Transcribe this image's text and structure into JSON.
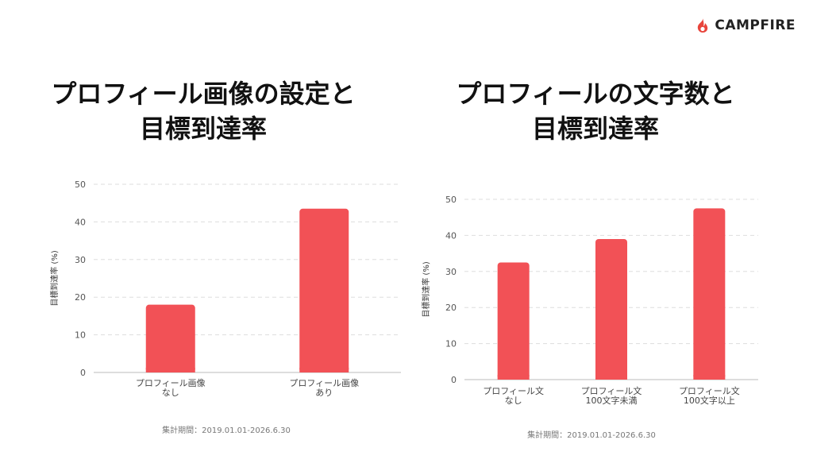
{
  "brand": {
    "name": "CAMPFIRE",
    "color": "#e8453c"
  },
  "colors": {
    "bar": "#f25156",
    "grid": "#dddddd",
    "axis": "#bbbbbb"
  },
  "chart_data": [
    {
      "type": "bar",
      "title": "プロフィール画像の設定と\n目標到達率",
      "ylabel": "目標到達率 (%)",
      "ylim": [
        0,
        50
      ],
      "yticks": [
        0,
        10,
        20,
        30,
        40,
        50
      ],
      "grid": true,
      "categories": [
        "プロフィール画像\nなし",
        "プロフィール画像\nあり"
      ],
      "values": [
        18,
        43.5
      ],
      "period": "集計期間：2019.01.01-2026.6.30"
    },
    {
      "type": "bar",
      "title": "プロフィールの文字数と\n目標到達率",
      "ylabel": "目標到達率 (%)",
      "ylim": [
        0,
        50
      ],
      "yticks": [
        0,
        10,
        20,
        30,
        40,
        50
      ],
      "grid": true,
      "categories": [
        "プロフィール文\nなし",
        "プロフィール文\n100文字未満",
        "プロフィール文\n100文字以上"
      ],
      "values": [
        32.5,
        39,
        47.5
      ],
      "period": "集計期間：2019.01.01-2026.6.30"
    }
  ]
}
